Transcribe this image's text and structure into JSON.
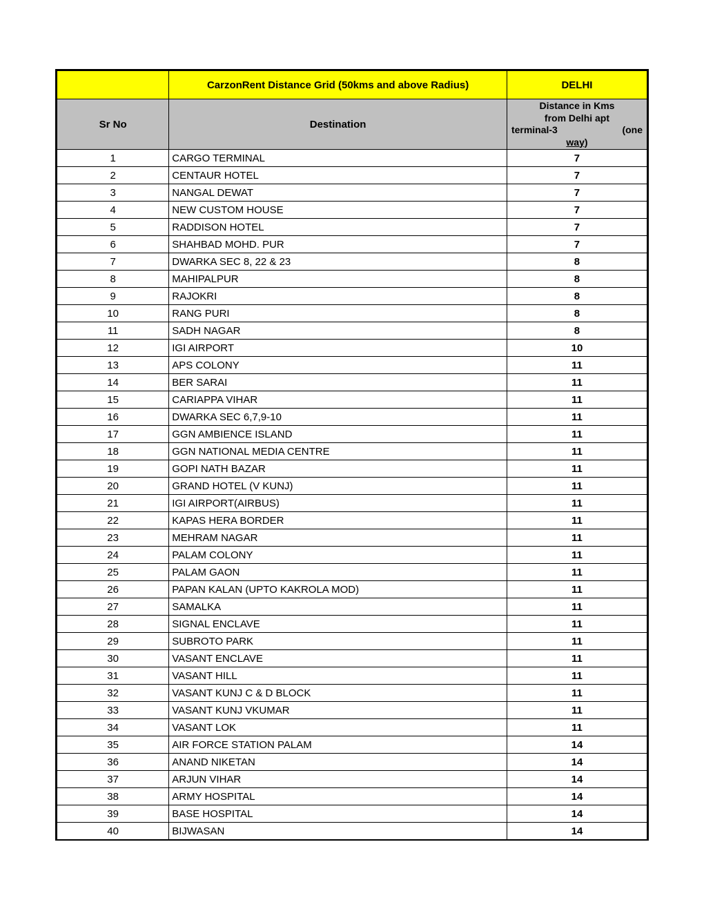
{
  "header": {
    "title": "CarzonRent Distance Grid (50kms  and above Radius)",
    "city": "DELHI",
    "col_sr": "Sr No",
    "col_dest": "Destination",
    "col_dist_line1": "Distance in Kms",
    "col_dist_line2": "from Delhi apt",
    "col_dist_line3a": "terminal-3",
    "col_dist_line3b": "(one",
    "col_dist_line4": "way)"
  },
  "rows": [
    {
      "sr": "1",
      "dest": "CARGO TERMINAL",
      "km": "7"
    },
    {
      "sr": "2",
      "dest": "CENTAUR HOTEL",
      "km": "7"
    },
    {
      "sr": "3",
      "dest": "NANGAL DEWAT",
      "km": "7"
    },
    {
      "sr": "4",
      "dest": "NEW CUSTOM HOUSE",
      "km": "7"
    },
    {
      "sr": "5",
      "dest": "RADDISON HOTEL",
      "km": "7"
    },
    {
      "sr": "6",
      "dest": "SHAHBAD MOHD. PUR",
      "km": "7"
    },
    {
      "sr": "7",
      "dest": "DWARKA SEC 8, 22 & 23",
      "km": "8"
    },
    {
      "sr": "8",
      "dest": "MAHIPALPUR",
      "km": "8"
    },
    {
      "sr": "9",
      "dest": "RAJOKRI",
      "km": "8"
    },
    {
      "sr": "10",
      "dest": "RANG PURI",
      "km": "8"
    },
    {
      "sr": "11",
      "dest": "SADH NAGAR",
      "km": "8"
    },
    {
      "sr": "12",
      "dest": "IGI  AIRPORT",
      "km": "10"
    },
    {
      "sr": "13",
      "dest": "APS COLONY",
      "km": "11"
    },
    {
      "sr": "14",
      "dest": "BER SARAI",
      "km": "11"
    },
    {
      "sr": "15",
      "dest": "CARIAPPA VIHAR",
      "km": "11"
    },
    {
      "sr": "16",
      "dest": "DWARKA SEC 6,7,9-10",
      "km": "11"
    },
    {
      "sr": "17",
      "dest": "GGN AMBIENCE ISLAND",
      "km": "11"
    },
    {
      "sr": "18",
      "dest": "GGN NATIONAL MEDIA CENTRE",
      "km": "11"
    },
    {
      "sr": "19",
      "dest": "GOPI NATH BAZAR",
      "km": "11"
    },
    {
      "sr": "20",
      "dest": "GRAND HOTEL (V KUNJ)",
      "km": "11"
    },
    {
      "sr": "21",
      "dest": "IGI  AIRPORT(AIRBUS)",
      "km": "11"
    },
    {
      "sr": "22",
      "dest": "KAPAS HERA BORDER",
      "km": "11"
    },
    {
      "sr": "23",
      "dest": "MEHRAM NAGAR",
      "km": "11"
    },
    {
      "sr": "24",
      "dest": "PALAM COLONY",
      "km": "11"
    },
    {
      "sr": "25",
      "dest": "PALAM GAON",
      "km": "11"
    },
    {
      "sr": "26",
      "dest": "PAPAN KALAN (UPTO KAKROLA MOD)",
      "km": "11"
    },
    {
      "sr": "27",
      "dest": "SAMALKA",
      "km": "11"
    },
    {
      "sr": "28",
      "dest": "SIGNAL ENCLAVE",
      "km": "11"
    },
    {
      "sr": "29",
      "dest": "SUBROTO PARK",
      "km": "11"
    },
    {
      "sr": "30",
      "dest": "VASANT ENCLAVE",
      "km": "11"
    },
    {
      "sr": "31",
      "dest": "VASANT HILL",
      "km": "11"
    },
    {
      "sr": "32",
      "dest": "VASANT KUNJ C & D BLOCK",
      "km": "11"
    },
    {
      "sr": "33",
      "dest": "VASANT KUNJ VKUMAR",
      "km": "11"
    },
    {
      "sr": "34",
      "dest": "VASANT LOK",
      "km": "11"
    },
    {
      "sr": "35",
      "dest": "AIR FORCE STATION PALAM",
      "km": "14"
    },
    {
      "sr": "36",
      "dest": "ANAND NIKETAN",
      "km": "14"
    },
    {
      "sr": "37",
      "dest": "ARJUN VIHAR",
      "km": "14"
    },
    {
      "sr": "38",
      "dest": "ARMY HOSPITAL",
      "km": "14"
    },
    {
      "sr": "39",
      "dest": "BASE HOSPITAL",
      "km": "14"
    },
    {
      "sr": "40",
      "dest": "BIJWASAN",
      "km": "14"
    }
  ],
  "style": {
    "header_bg": "#ffff00",
    "subheader_bg": "#c0c0c0",
    "border_color": "#000000",
    "font_family": "Arial"
  }
}
